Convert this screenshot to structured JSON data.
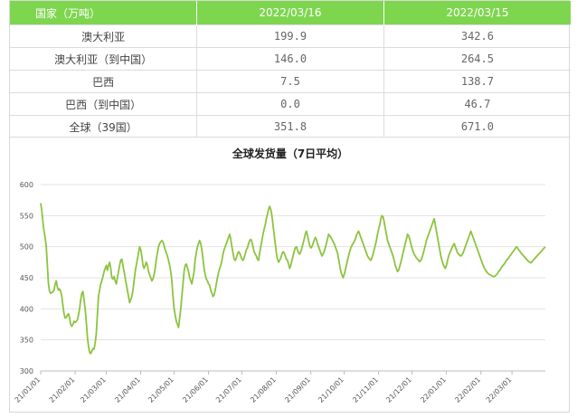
{
  "table": {
    "headers": [
      "国家（万吨）",
      "2022/03/16",
      "2022/03/15"
    ],
    "rows": [
      [
        "澳大利亚",
        "199.9",
        "342.6"
      ],
      [
        "澳大利亚（到中国）",
        "146.0",
        "264.5"
      ],
      [
        "巴西",
        "7.5",
        "138.7"
      ],
      [
        "巴西（到中国）",
        "0.0",
        "46.7"
      ],
      [
        "全球（39国）",
        "351.8",
        "671.0"
      ]
    ]
  },
  "colors": {
    "accent": "#7ed64f",
    "line": "#8cc43f",
    "grid": "#e3e3e3"
  },
  "chart_data": {
    "type": "line",
    "title": "全球发货量（7日平均）",
    "xlabel": "",
    "ylabel": "",
    "ylim": [
      300,
      600
    ],
    "yticks": [
      300,
      350,
      400,
      450,
      500,
      550,
      600
    ],
    "grid": true,
    "xticklabels": [
      "21/01/01",
      "21/02/01",
      "21/03/01",
      "21/04/01",
      "21/05/01",
      "21/06/01",
      "21/07/01",
      "21/08/01",
      "21/09/01",
      "21/10/01",
      "21/11/01",
      "21/12/01",
      "22/01/01",
      "22/02/01",
      "22/03/01"
    ],
    "xtick_index": [
      0,
      31,
      59,
      90,
      120,
      151,
      181,
      212,
      243,
      273,
      304,
      334,
      365,
      396,
      424
    ],
    "series": [
      {
        "values": [
          570,
          558,
          540,
          525,
          515,
          500,
          470,
          440,
          428,
          425,
          426,
          428,
          430,
          440,
          445,
          435,
          430,
          432,
          428,
          420,
          405,
          392,
          385,
          386,
          390,
          392,
          385,
          375,
          372,
          375,
          380,
          378,
          380,
          382,
          390,
          400,
          415,
          425,
          428,
          415,
          400,
          380,
          355,
          340,
          330,
          328,
          332,
          336,
          335,
          345,
          360,
          390,
          420,
          430,
          440,
          445,
          452,
          460,
          465,
          470,
          462,
          470,
          475,
          465,
          450,
          448,
          452,
          445,
          440,
          450,
          460,
          470,
          478,
          480,
          470,
          460,
          450,
          440,
          430,
          420,
          410,
          415,
          420,
          430,
          445,
          460,
          470,
          480,
          490,
          500,
          495,
          485,
          470,
          465,
          470,
          475,
          470,
          460,
          455,
          450,
          445,
          448,
          455,
          465,
          480,
          490,
          500,
          505,
          508,
          510,
          508,
          502,
          495,
          490,
          485,
          478,
          470,
          460,
          445,
          420,
          400,
          390,
          380,
          375,
          370,
          385,
          400,
          420,
          440,
          460,
          470,
          472,
          466,
          460,
          450,
          445,
          440,
          450,
          460,
          480,
          490,
          500,
          505,
          510,
          505,
          495,
          480,
          465,
          455,
          448,
          445,
          440,
          438,
          430,
          425,
          420,
          422,
          430,
          440,
          450,
          458,
          465,
          470,
          478,
          488,
          495,
          500,
          505,
          510,
          515,
          520,
          512,
          500,
          490,
          480,
          478,
          482,
          488,
          492,
          490,
          485,
          480,
          478,
          482,
          488,
          495,
          498,
          505,
          510,
          512,
          508,
          500,
          492,
          488,
          485,
          480,
          478,
          490,
          500,
          510,
          520,
          528,
          535,
          545,
          552,
          560,
          565,
          560,
          550,
          535,
          520,
          505,
          490,
          480,
          475,
          478,
          482,
          488,
          492,
          490,
          485,
          480,
          478,
          472,
          465,
          470,
          478,
          485,
          492,
          498,
          500,
          495,
          490,
          488,
          492,
          498,
          505,
          512,
          520,
          525,
          518,
          510,
          502,
          498,
          500,
          505,
          510,
          515,
          512,
          505,
          500,
          495,
          490,
          485,
          488,
          492,
          498,
          505,
          512,
          520,
          518,
          515,
          512,
          508,
          505,
          500,
          495,
          490,
          480,
          470,
          460,
          455,
          450,
          455,
          462,
          470,
          478,
          485,
          492,
          498,
          502,
          505,
          508,
          512,
          518,
          522,
          525,
          520,
          515,
          510,
          505,
          500,
          495,
          490,
          485,
          482,
          480,
          478,
          482,
          488,
          495,
          502,
          510,
          520,
          528,
          535,
          545,
          550,
          548,
          540,
          530,
          520,
          510,
          505,
          500,
          495,
          490,
          485,
          478,
          470,
          465,
          460,
          462,
          468,
          475,
          482,
          490,
          498,
          505,
          512,
          520,
          518,
          512,
          505,
          498,
          492,
          488,
          485,
          482,
          480,
          478,
          476,
          478,
          482,
          488,
          495,
          502,
          510,
          515,
          520,
          525,
          530,
          535,
          540,
          545,
          535,
          525,
          515,
          505,
          495,
          485,
          478,
          472,
          468,
          465,
          470,
          478,
          485,
          490,
          494,
          498,
          502,
          505,
          500,
          495,
          490,
          488,
          486,
          485,
          487,
          490,
          495,
          500,
          505,
          510,
          515,
          520,
          525,
          520,
          515,
          510,
          505,
          500,
          495,
          490,
          485,
          480,
          475,
          470,
          466,
          463,
          460,
          458,
          456,
          455,
          454,
          453,
          452,
          452,
          453,
          455,
          457,
          460,
          462,
          465,
          468,
          470,
          472,
          475,
          478,
          480,
          482,
          485,
          487,
          490,
          492,
          495,
          497,
          500,
          498,
          495,
          493,
          490,
          488,
          486,
          484,
          482,
          480,
          478,
          476,
          475,
          474,
          476,
          478,
          480,
          482,
          484,
          486,
          488,
          490,
          492,
          494,
          496,
          498,
          500
        ]
      }
    ]
  }
}
